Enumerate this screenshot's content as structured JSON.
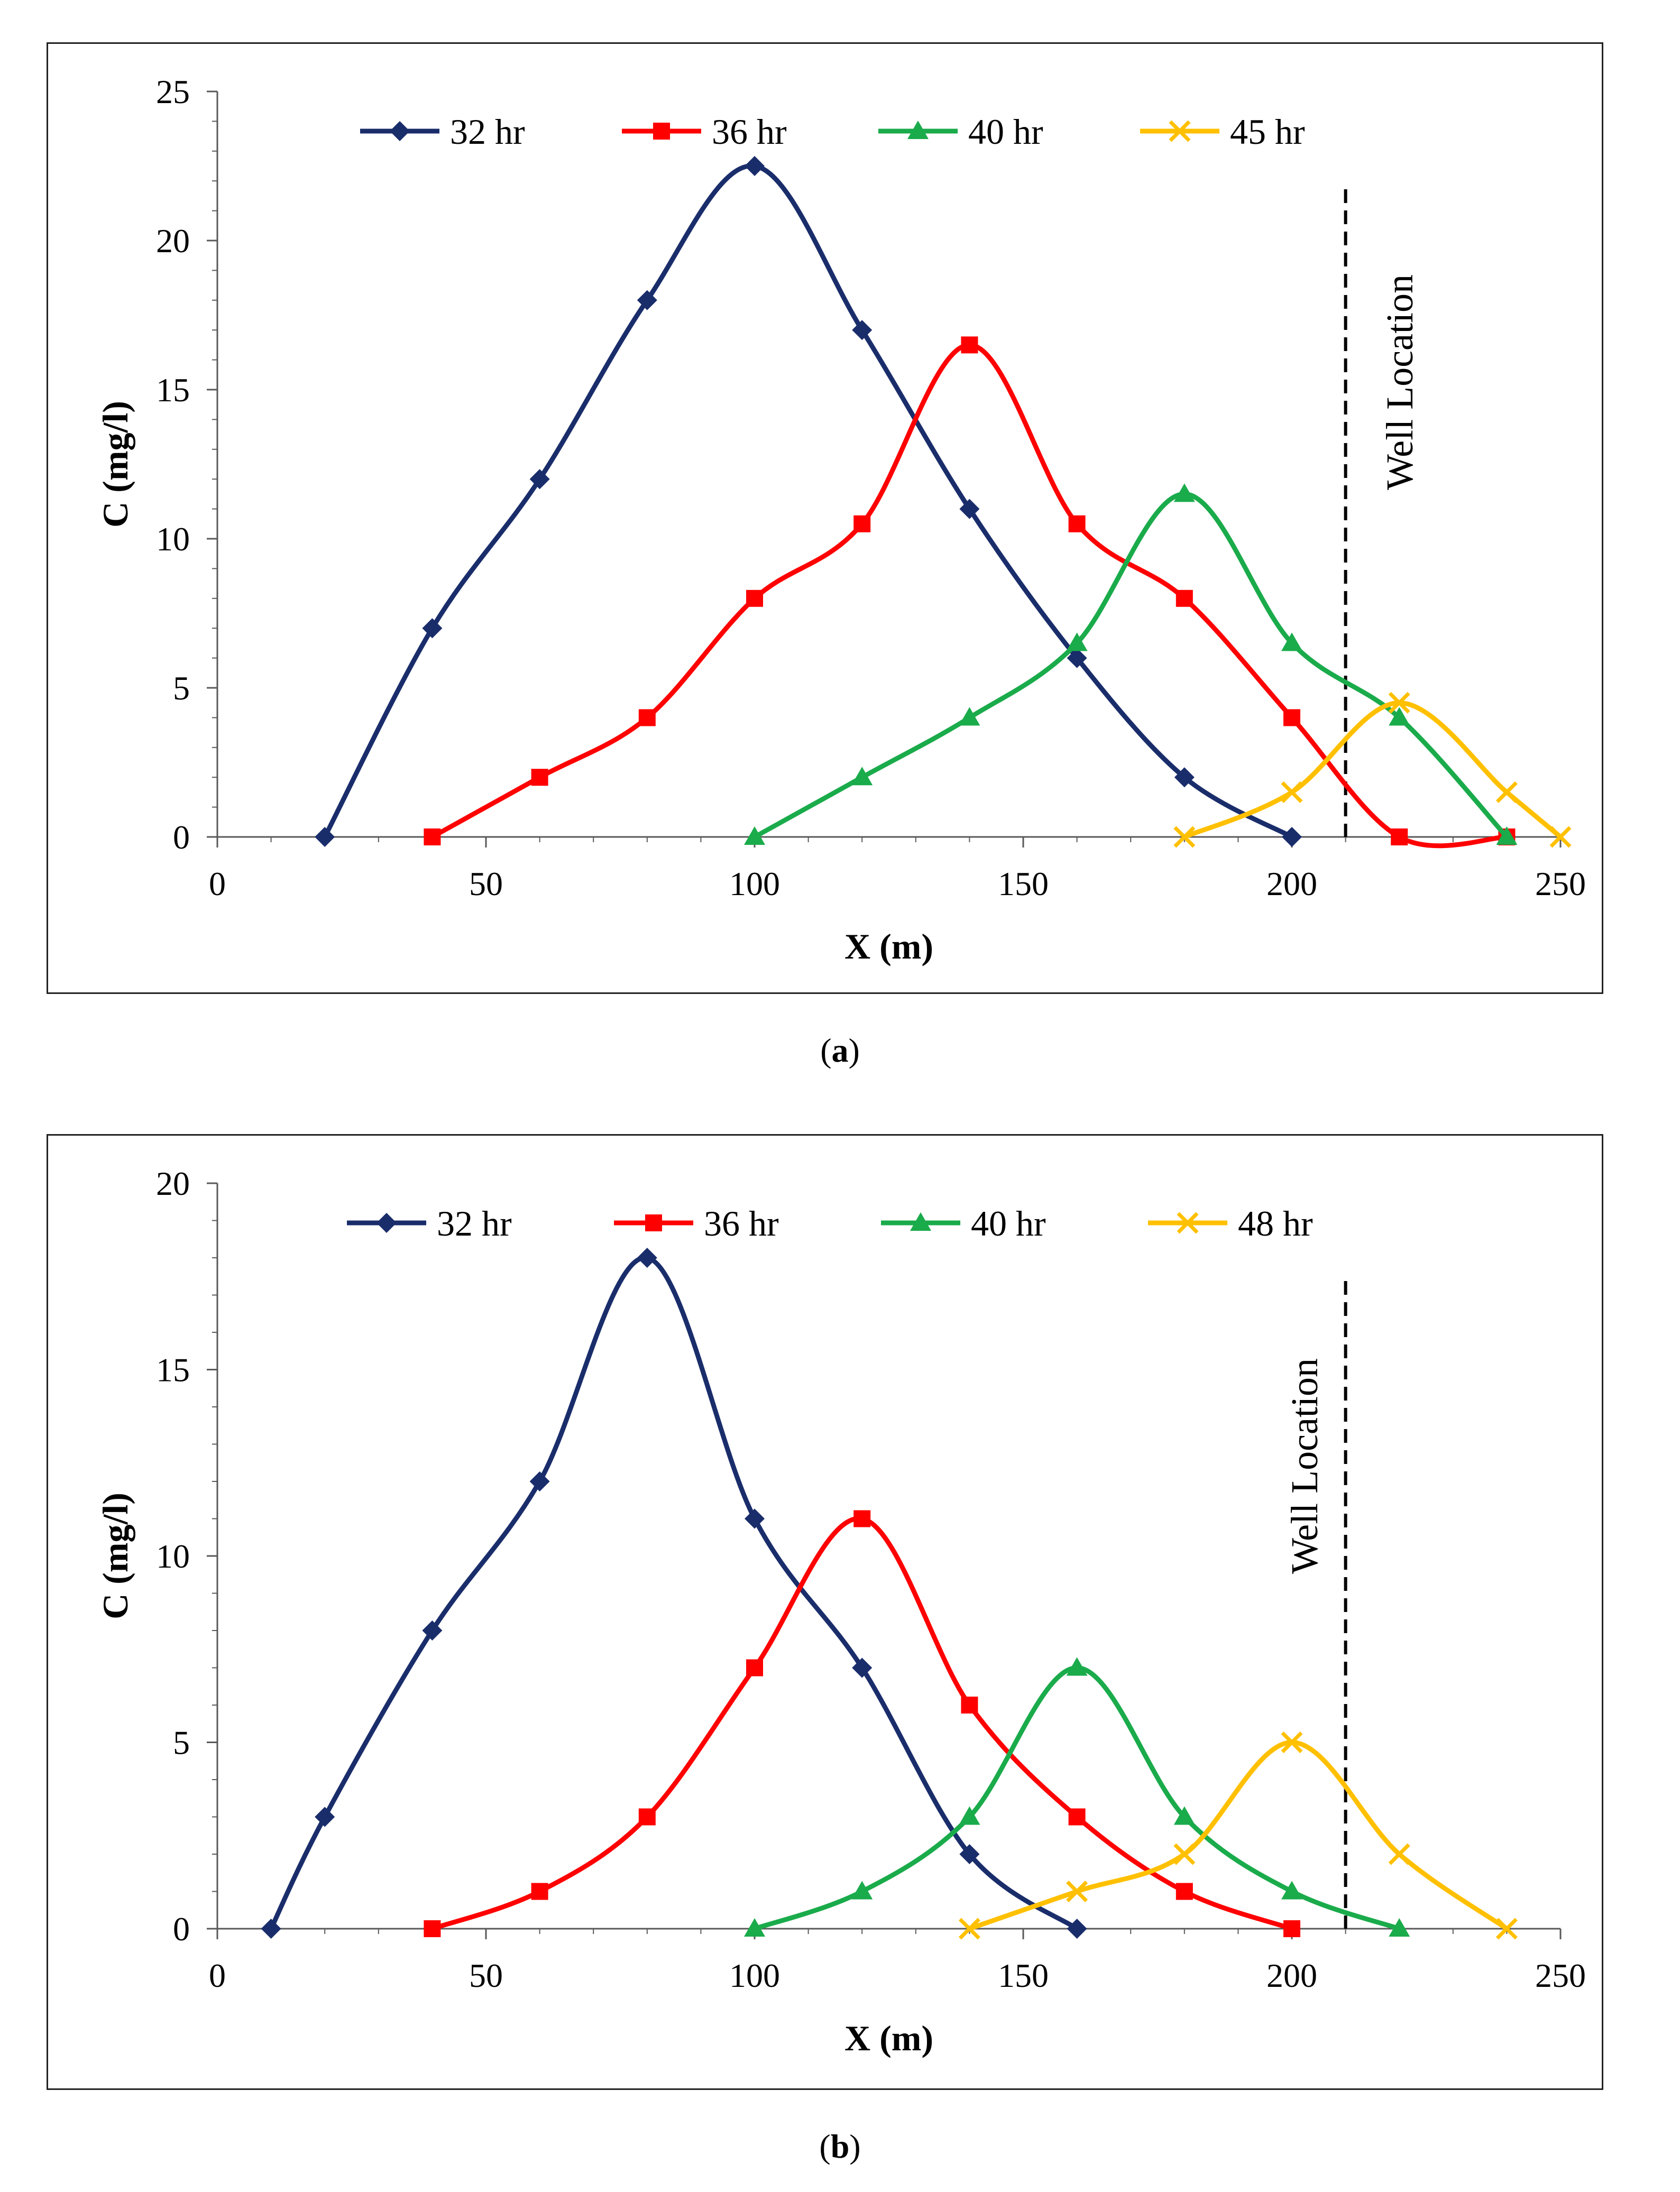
{
  "figure": {
    "panels": [
      {
        "caption_open": "(",
        "caption_letter": "a",
        "caption_close": ")"
      },
      {
        "caption_open": "(",
        "caption_letter": "b",
        "caption_close": ")"
      }
    ]
  },
  "chart_data": [
    {
      "type": "line",
      "title": "",
      "xlabel": "X (m)",
      "ylabel": "C (mg/l)",
      "xlim": [
        0,
        250
      ],
      "ylim": [
        0,
        25
      ],
      "xticks": [
        0,
        50,
        100,
        150,
        200,
        250
      ],
      "yticks": [
        0,
        5,
        10,
        15,
        20,
        25
      ],
      "legend_position": "top",
      "annotation": {
        "text": "Well Location",
        "x": 210
      },
      "series": [
        {
          "name": "32 hr",
          "color": "#1a2d6b",
          "marker": "diamond",
          "x": [
            20,
            40,
            60,
            80,
            100,
            120,
            140,
            160,
            180,
            200
          ],
          "y": [
            0,
            7,
            12,
            18,
            22.5,
            17,
            11,
            6,
            2,
            0
          ]
        },
        {
          "name": "36 hr",
          "color": "#ff0000",
          "marker": "square",
          "x": [
            40,
            60,
            80,
            100,
            120,
            140,
            160,
            180,
            200,
            220,
            240
          ],
          "y": [
            0,
            2,
            4,
            8,
            10.5,
            16.5,
            10.5,
            8,
            4,
            0,
            0
          ]
        },
        {
          "name": "40 hr",
          "color": "#1aab4b",
          "marker": "triangle",
          "x": [
            100,
            120,
            140,
            160,
            180,
            200,
            220,
            240
          ],
          "y": [
            0,
            2,
            4,
            6.5,
            11.5,
            6.5,
            4,
            0
          ]
        },
        {
          "name": "45 hr",
          "color": "#ffc000",
          "marker": "x",
          "x": [
            180,
            200,
            220,
            240,
            250
          ],
          "y": [
            0,
            1.5,
            4.5,
            1.5,
            0
          ]
        }
      ]
    },
    {
      "type": "line",
      "title": "",
      "xlabel": "X (m)",
      "ylabel": "C (mg/l)",
      "xlim": [
        0,
        250
      ],
      "ylim": [
        0,
        20
      ],
      "xticks": [
        0,
        50,
        100,
        150,
        200,
        250
      ],
      "yticks": [
        0,
        5,
        10,
        15,
        20
      ],
      "legend_position": "top",
      "annotation": {
        "text": "Well Location",
        "x": 210
      },
      "series": [
        {
          "name": "32 hr",
          "color": "#1a2d6b",
          "marker": "diamond",
          "x": [
            10,
            20,
            40,
            60,
            80,
            100,
            120,
            140,
            160
          ],
          "y": [
            0,
            3,
            8,
            12,
            18,
            11,
            7,
            2,
            0
          ]
        },
        {
          "name": "36 hr",
          "color": "#ff0000",
          "marker": "square",
          "x": [
            40,
            60,
            80,
            100,
            120,
            140,
            160,
            180,
            200
          ],
          "y": [
            0,
            1,
            3,
            7,
            11,
            6,
            3,
            1,
            0
          ]
        },
        {
          "name": "40 hr",
          "color": "#1aab4b",
          "marker": "triangle",
          "x": [
            100,
            120,
            140,
            160,
            180,
            200,
            220
          ],
          "y": [
            0,
            1,
            3,
            7,
            3,
            1,
            0
          ]
        },
        {
          "name": "48 hr",
          "color": "#ffc000",
          "marker": "x",
          "x": [
            140,
            160,
            180,
            200,
            220,
            240
          ],
          "y": [
            0,
            1,
            2,
            5,
            2,
            0
          ]
        }
      ]
    }
  ]
}
